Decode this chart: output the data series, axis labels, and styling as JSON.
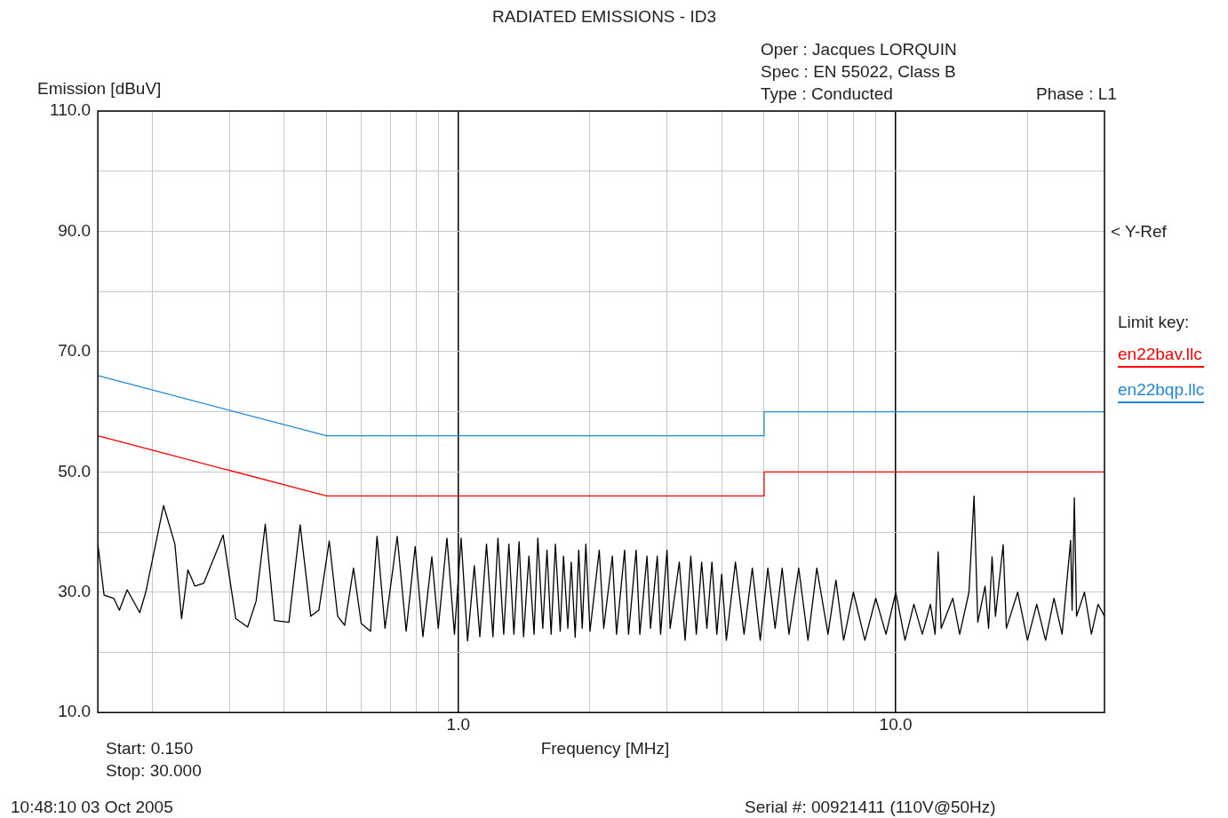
{
  "chart_data": {
    "type": "line",
    "title": "RADIATED EMISSIONS  - ID3",
    "xlabel": "Frequency [MHz]",
    "ylabel": "Emission [dBuV]",
    "legend_title": "Limit key:",
    "legend": "right",
    "grid": true,
    "marker": "none",
    "line_style": "solid",
    "log": "x",
    "xlim": [
      0.15,
      30
    ],
    "ylim": [
      10,
      110
    ],
    "xticks": [
      {
        "value": 0.2,
        "label": null
      },
      {
        "value": 0.3,
        "label": null
      },
      {
        "value": 0.4,
        "label": null
      },
      {
        "value": 0.5,
        "label": null
      },
      {
        "value": 0.6,
        "label": null
      },
      {
        "value": 0.7,
        "label": null
      },
      {
        "value": 0.8,
        "label": null
      },
      {
        "value": 0.9,
        "label": null
      },
      {
        "value": 1,
        "label": "1.0"
      },
      {
        "value": 2,
        "label": null
      },
      {
        "value": 3,
        "label": null
      },
      {
        "value": 4,
        "label": null
      },
      {
        "value": 5,
        "label": null
      },
      {
        "value": 6,
        "label": null
      },
      {
        "value": 7,
        "label": null
      },
      {
        "value": 8,
        "label": null
      },
      {
        "value": 9,
        "label": null
      },
      {
        "value": 10,
        "label": "10.0"
      },
      {
        "value": 20,
        "label": null
      }
    ],
    "yticks": [
      {
        "value": 10,
        "label": "10.0"
      },
      {
        "value": 20,
        "label": null
      },
      {
        "value": 30,
        "label": "30.0"
      },
      {
        "value": 40,
        "label": null
      },
      {
        "value": 50,
        "label": "50.0"
      },
      {
        "value": 60,
        "label": null
      },
      {
        "value": 70,
        "label": "70.0"
      },
      {
        "value": 80,
        "label": null
      },
      {
        "value": 90,
        "label": "90.0"
      },
      {
        "value": 100,
        "label": null
      },
      {
        "value": 110,
        "label": "110.0"
      }
    ],
    "series": [
      {
        "color": "#000000",
        "x": [
          0.15,
          0.155,
          0.163,
          0.168,
          0.175,
          0.187,
          0.193,
          0.212,
          0.225,
          0.233,
          0.241,
          0.25,
          0.262,
          0.29,
          0.31,
          0.33,
          0.345,
          0.362,
          0.38,
          0.41,
          0.435,
          0.46,
          0.48,
          0.507,
          0.53,
          0.55,
          0.576,
          0.6,
          0.63,
          0.652,
          0.68,
          0.725,
          0.76,
          0.797,
          0.83,
          0.87,
          0.9,
          0.942,
          0.98,
          1.015,
          1.05,
          1.088,
          1.12,
          1.16,
          1.2,
          1.232,
          1.27,
          1.305,
          1.34,
          1.377,
          1.41,
          1.45,
          1.49,
          1.52,
          1.56,
          1.595,
          1.63,
          1.667,
          1.71,
          1.74,
          1.78,
          1.812,
          1.85,
          1.885,
          1.92,
          1.957,
          2.0,
          2.1,
          2.15,
          2.25,
          2.3,
          2.4,
          2.45,
          2.55,
          2.6,
          2.7,
          2.75,
          2.85,
          2.9,
          3.0,
          3.05,
          3.2,
          3.3,
          3.4,
          3.5,
          3.6,
          3.7,
          3.8,
          3.9,
          4.0,
          4.1,
          4.3,
          4.5,
          4.7,
          4.9,
          5.1,
          5.3,
          5.5,
          5.7,
          6.0,
          6.3,
          6.6,
          7.0,
          7.3,
          7.6,
          8.0,
          8.5,
          9.0,
          9.5,
          10,
          10.5,
          11,
          11.5,
          12,
          12.3,
          12.5,
          12.7,
          13.5,
          14,
          14.7,
          15.1,
          15.4,
          16,
          16.3,
          16.6,
          16.9,
          17.6,
          17.9,
          19,
          20,
          21,
          22,
          23,
          24,
          25.1,
          25.3,
          25.6,
          25.9,
          27,
          28,
          29,
          30
        ],
        "values": [
          38,
          29.5,
          29,
          27,
          30.4,
          26.6,
          30,
          44.4,
          38,
          25.6,
          33.7,
          31,
          31.5,
          39.5,
          25.6,
          24.2,
          28.5,
          41.3,
          25.3,
          25,
          41.2,
          26,
          27,
          38.5,
          26,
          24.5,
          34,
          24.8,
          23.5,
          39.3,
          24,
          39.3,
          23.5,
          37.6,
          22.6,
          35.9,
          24,
          39,
          23,
          39,
          21.9,
          34.4,
          22.6,
          38,
          22.6,
          39,
          23,
          38,
          23,
          38.4,
          22.6,
          36,
          23,
          39,
          24,
          37,
          23,
          38,
          23.5,
          36,
          24,
          35,
          22.5,
          37,
          24,
          38,
          23.5,
          37,
          24,
          36,
          23,
          37,
          23,
          37,
          23,
          36,
          24,
          36,
          23,
          37,
          24,
          35,
          22,
          36,
          23,
          35,
          24,
          35,
          23,
          33,
          22,
          35,
          23,
          34,
          22,
          34,
          24,
          34,
          23,
          34,
          22,
          34,
          23,
          32,
          22,
          30,
          22,
          29,
          23,
          30,
          22,
          28,
          23,
          28,
          23,
          36.7,
          24,
          29,
          23,
          30,
          46,
          25,
          31,
          24,
          35.9,
          26,
          37.9,
          24,
          30,
          22,
          28,
          22,
          29,
          23,
          38.6,
          27,
          45.7,
          26,
          30,
          23,
          28,
          26
        ]
      },
      {
        "name": "en22bav.llc",
        "color": "#ff0000",
        "x": [
          0.15,
          0.5,
          5,
          5,
          30
        ],
        "values": [
          56,
          46,
          46,
          50,
          50
        ]
      },
      {
        "name": "en22bqp.llc",
        "color": "#1e88d8",
        "x": [
          0.15,
          0.5,
          5,
          5,
          30
        ],
        "values": [
          66,
          56,
          56,
          60,
          60
        ]
      }
    ],
    "annotations": [
      "Oper : Jacques LORQUIN",
      "Spec : EN 55022, Class B",
      "Type : Conducted",
      "Phase : L1",
      "< Y-Ref",
      "Start: 0.150",
      "Stop: 30.000",
      "10:48:10  03 Oct 2005",
      "Serial #: 00921411 (110V@50Hz)"
    ]
  }
}
